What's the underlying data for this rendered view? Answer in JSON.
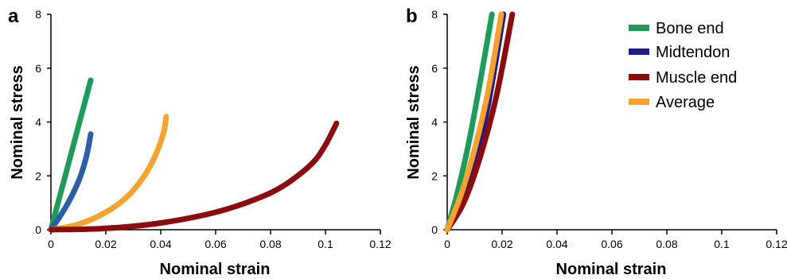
{
  "colors": {
    "bone_end": "#1f9a5b",
    "midtendon": "#1d1b8f",
    "muscle_end": "#8b0c0c",
    "average": "#f7a12e",
    "midtendon_panel_a": "#2b5fa6"
  },
  "chart_data": [
    {
      "type": "line",
      "panel_label": "a",
      "xlabel": "Nominal strain",
      "ylabel": "Nominal stress",
      "xlim": [
        0,
        0.12
      ],
      "ylim": [
        0,
        8
      ],
      "xticks": [
        "0",
        "0.02",
        "0.04",
        "0.06",
        "0.08",
        "0.1",
        "0.12"
      ],
      "yticks": [
        "0",
        "2",
        "4",
        "6",
        "8"
      ],
      "series": [
        {
          "name": "Bone end",
          "color": "#1f9a5b",
          "x": [
            0,
            0.003,
            0.006,
            0.009,
            0.012,
            0.0145
          ],
          "y": [
            0,
            1.15,
            2.3,
            3.45,
            4.6,
            5.55
          ]
        },
        {
          "name": "Midtendon",
          "color": "#2b5fa6",
          "x": [
            0,
            0.003,
            0.006,
            0.009,
            0.011,
            0.013,
            0.0145
          ],
          "y": [
            0,
            0.45,
            0.95,
            1.55,
            2.05,
            2.75,
            3.55
          ]
        },
        {
          "name": "Average",
          "color": "#f7a12e",
          "x": [
            0,
            0.01,
            0.02,
            0.028,
            0.034,
            0.038,
            0.041,
            0.042
          ],
          "y": [
            0,
            0.2,
            0.65,
            1.25,
            2.0,
            2.75,
            3.6,
            4.2
          ]
        },
        {
          "name": "Muscle end",
          "color": "#8b0c0c",
          "x": [
            0,
            0.02,
            0.04,
            0.06,
            0.075,
            0.085,
            0.095,
            0.1,
            0.104
          ],
          "y": [
            0,
            0.05,
            0.25,
            0.65,
            1.15,
            1.65,
            2.45,
            3.15,
            3.95
          ]
        }
      ]
    },
    {
      "type": "line",
      "panel_label": "b",
      "xlabel": "Nominal strain",
      "ylabel": "Nominal stress",
      "xlim": [
        0,
        0.12
      ],
      "ylim": [
        0,
        8
      ],
      "xticks": [
        "0",
        "0.02",
        "0.04",
        "0.06",
        "0.08",
        "0.1",
        "0.12"
      ],
      "yticks": [
        "0",
        "2",
        "4",
        "6",
        "8"
      ],
      "legend": {
        "position": "top-right",
        "entries": [
          "Bone end",
          "Midtendon",
          "Muscle end",
          "Average"
        ]
      },
      "series": [
        {
          "name": "Bone end",
          "color": "#1f9a5b",
          "x": [
            0,
            0.004,
            0.008,
            0.012,
            0.0163
          ],
          "y": [
            0,
            1.5,
            3.3,
            5.5,
            8.0
          ]
        },
        {
          "name": "Midtendon",
          "color": "#1d1b8f",
          "x": [
            0,
            0.005,
            0.01,
            0.015,
            0.0205
          ],
          "y": [
            0,
            1.0,
            2.5,
            4.7,
            8.0
          ]
        },
        {
          "name": "Muscle end",
          "color": "#8b0c0c",
          "x": [
            0,
            0.006,
            0.012,
            0.018,
            0.0237
          ],
          "y": [
            0,
            1.0,
            2.7,
            5.0,
            8.0
          ]
        },
        {
          "name": "Average",
          "color": "#f7a12e",
          "x": [
            0,
            0.005,
            0.01,
            0.015,
            0.0197
          ],
          "y": [
            0,
            1.3,
            3.0,
            5.2,
            8.0
          ]
        }
      ]
    }
  ]
}
